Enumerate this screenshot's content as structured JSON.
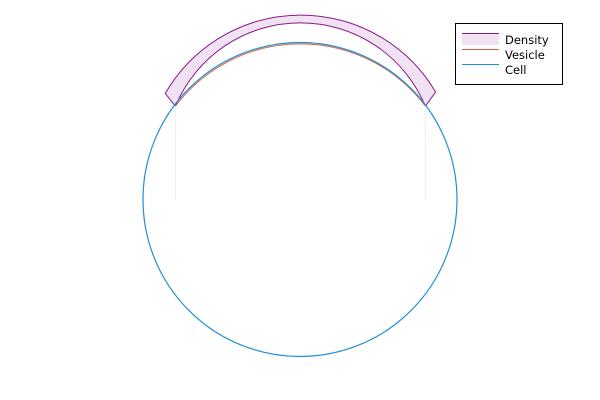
{
  "legend": {
    "entries": [
      {
        "key": "density",
        "label": "Density",
        "color": "#8b1a8b",
        "fill": "#f1e2f3"
      },
      {
        "key": "vesicle",
        "label": "Vesicle",
        "color": "#e0603a"
      },
      {
        "key": "cell",
        "label": "Cell",
        "color": "#1f8fd8"
      }
    ]
  },
  "colors": {
    "background": "#ffffff",
    "legend_border": "#000000"
  }
}
